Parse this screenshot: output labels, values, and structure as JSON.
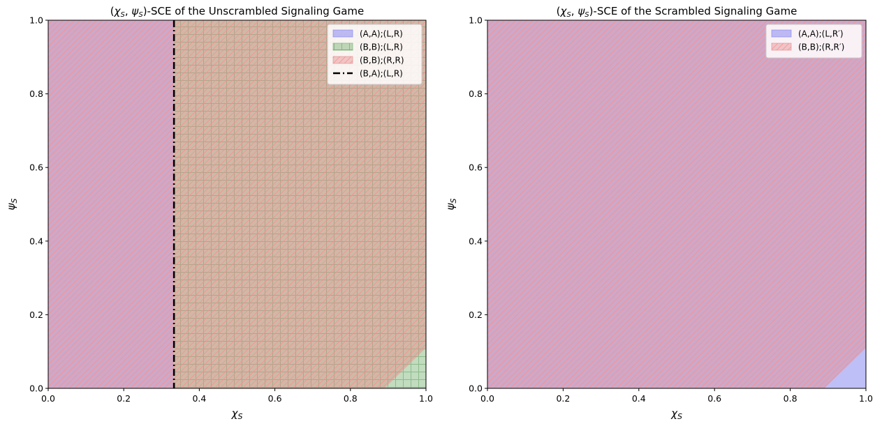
{
  "chart_data": [
    {
      "type": "area",
      "title": "(χ_S, ψ_S)-SCE of the Unscrambled Signaling Game",
      "title_prefix": "(",
      "title_chi": "χ",
      "title_psi": "ψ",
      "title_sub": "S",
      "title_rest": ")-SCE of the Unscrambled Signaling Game",
      "xlabel_main": "χ",
      "ylabel_main": "ψ",
      "label_sub": "S",
      "xlim": [
        0,
        1
      ],
      "ylim": [
        0,
        1
      ],
      "xticks": [
        "0.0",
        "0.2",
        "0.4",
        "0.6",
        "0.8",
        "1.0"
      ],
      "yticks": [
        "0.0",
        "0.2",
        "0.4",
        "0.6",
        "0.8",
        "1.0"
      ],
      "grid": false,
      "legend_position": "top-right",
      "vline_x": 0.333,
      "series": [
        {
          "name": "(A,A);(L,R)",
          "kind": "fill",
          "color": "#8080f0",
          "hatch": "none",
          "polygon": [
            [
              0,
              0
            ],
            [
              0.333,
              0
            ],
            [
              0.333,
              1
            ],
            [
              0,
              1
            ]
          ]
        },
        {
          "name": "(B,B);(L,R)",
          "kind": "fill",
          "color": "#6cac64",
          "hatch": "grid",
          "polygon": [
            [
              0.333,
              0
            ],
            [
              1,
              0
            ],
            [
              1,
              1
            ],
            [
              0.333,
              1
            ]
          ]
        },
        {
          "name": "(B,B);(R,R)",
          "kind": "fill",
          "color": "#e08888",
          "hatch": "diagonal",
          "polygon": [
            [
              0,
              0
            ],
            [
              0.89,
              0
            ],
            [
              1,
              0.11
            ],
            [
              1,
              1
            ],
            [
              0,
              1
            ]
          ]
        },
        {
          "name": "(B,A);(L,R)",
          "kind": "line",
          "color": "#000000",
          "style": "dash-dot"
        }
      ]
    },
    {
      "type": "area",
      "title": "(χ_S, ψ_S)-SCE of the Scrambled Signaling Game",
      "title_prefix": "(",
      "title_chi": "χ",
      "title_psi": "ψ",
      "title_sub": "S",
      "title_rest": ")-SCE of the Scrambled Signaling Game",
      "xlabel_main": "χ",
      "ylabel_main": "ψ",
      "label_sub": "S",
      "xlim": [
        0,
        1
      ],
      "ylim": [
        0,
        1
      ],
      "xticks": [
        "0.0",
        "0.2",
        "0.4",
        "0.6",
        "0.8",
        "1.0"
      ],
      "yticks": [
        "0.0",
        "0.2",
        "0.4",
        "0.6",
        "0.8",
        "1.0"
      ],
      "grid": false,
      "legend_position": "top-right",
      "series": [
        {
          "name": "(A,A);(L,R′)",
          "kind": "fill",
          "color": "#8080f0",
          "hatch": "none",
          "polygon": [
            [
              0,
              0
            ],
            [
              1,
              0
            ],
            [
              1,
              1
            ],
            [
              0,
              1
            ]
          ]
        },
        {
          "name": "(B,B);(R,R′)",
          "kind": "fill",
          "color": "#e08888",
          "hatch": "diagonal",
          "polygon": [
            [
              0,
              0
            ],
            [
              0.89,
              0
            ],
            [
              1,
              0.11
            ],
            [
              1,
              1
            ],
            [
              0,
              1
            ]
          ]
        }
      ]
    }
  ]
}
